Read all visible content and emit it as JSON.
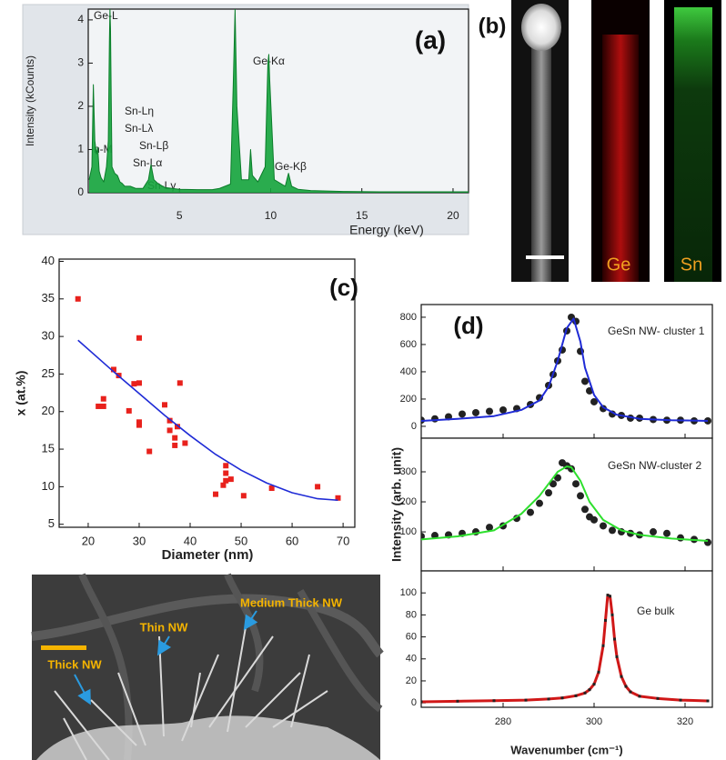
{
  "chart_data": [
    {
      "type": "area",
      "panel_label": "(a)",
      "x_label": "Energy (keV)",
      "y_label": "Intensity (kCounts)",
      "xlim": [
        0,
        20.85
      ],
      "xticks": [
        5,
        10,
        15,
        20
      ],
      "ylim": [
        0,
        4.25
      ],
      "yticks": [
        0,
        1,
        2,
        3,
        4
      ],
      "annotations": [
        "Ge-L",
        "Sn-Lη",
        "Sn-Lλ",
        "Sn-Lβ",
        "Sn-Lα",
        "Sn-Lγ",
        "n-M",
        "Ge-Kα",
        "Ge-Kβ"
      ],
      "x": [
        0.05,
        0.2,
        0.28,
        0.36,
        0.45,
        0.52,
        0.6,
        0.7,
        0.85,
        1.0,
        1.1,
        1.16,
        1.19,
        1.22,
        1.3,
        1.45,
        1.6,
        1.74,
        1.85,
        2.0,
        2.3,
        2.6,
        3.0,
        3.3,
        3.44,
        3.6,
        3.8,
        4.2,
        5.0,
        6.0,
        6.8,
        7.2,
        7.8,
        7.95,
        8.05,
        8.15,
        8.4,
        8.8,
        8.9,
        9.0,
        9.3,
        9.7,
        9.85,
        9.9,
        9.95,
        10.2,
        10.8,
        10.98,
        11.15,
        11.5,
        12.2,
        14,
        16,
        18,
        20.85
      ],
      "series": [
        {
          "color": "#14a43c",
          "values": [
            0.3,
            0.6,
            2.5,
            1.2,
            0.9,
            1.05,
            0.5,
            0.35,
            0.25,
            0.6,
            1.2,
            3.5,
            4.25,
            3.8,
            0.6,
            0.45,
            0.4,
            0.25,
            0.22,
            0.15,
            0.15,
            0.1,
            0.1,
            0.3,
            0.65,
            0.3,
            0.22,
            0.12,
            0.08,
            0.07,
            0.07,
            0.1,
            0.2,
            2.5,
            4.25,
            2.0,
            0.3,
            0.3,
            1.0,
            0.4,
            0.25,
            0.6,
            3.0,
            3.2,
            2.6,
            0.3,
            0.15,
            0.45,
            0.15,
            0.08,
            0.05,
            0.03,
            0.02,
            0.02,
            0.02
          ]
        }
      ]
    },
    {
      "type": "scatter",
      "panel_label": "(c)",
      "x_label": "Diameter (nm)",
      "y_label": "x (at.%)",
      "xlim": [
        14.3,
        72.3
      ],
      "xticks": [
        20,
        30,
        40,
        50,
        60,
        70
      ],
      "ylim": [
        4.6,
        40.3
      ],
      "yticks": [
        5,
        10,
        15,
        20,
        25,
        30,
        35,
        40
      ],
      "series": [
        {
          "type": "scatter",
          "marker": "square",
          "color": "#e8211c",
          "x": [
            18,
            22,
            23,
            23,
            25,
            26,
            28,
            29,
            30,
            30,
            30,
            30,
            32,
            35,
            36,
            36,
            37,
            37,
            37.5,
            38,
            39,
            45,
            46.5,
            47,
            47,
            47,
            48,
            50.5,
            56,
            65,
            69
          ],
          "values": [
            35,
            20.7,
            21.7,
            20.7,
            25.6,
            24.8,
            20.1,
            23.7,
            23.8,
            29.8,
            18.6,
            18.2,
            14.7,
            20.9,
            18.8,
            17.5,
            15.5,
            16.5,
            18,
            23.8,
            15.8,
            9,
            10.2,
            10.8,
            11.8,
            12.8,
            11,
            8.8,
            9.8,
            10,
            8.5
          ]
        },
        {
          "type": "line",
          "color": "#1f2bd6",
          "x": [
            18,
            25,
            30,
            35,
            40,
            45,
            50,
            55,
            60,
            65,
            69
          ],
          "values": [
            29.5,
            25.3,
            22.4,
            19.5,
            16.8,
            14.3,
            12.2,
            10.5,
            9.2,
            8.4,
            8.2
          ]
        }
      ]
    },
    {
      "type": "line",
      "panel_label": "(d)",
      "note": "GeSn NW- cluster 1",
      "xlim": [
        262,
        326
      ],
      "xticks": [
        280,
        300,
        320
      ],
      "ylim": [
        -87,
        893
      ],
      "yticks": [
        0,
        200,
        400,
        600,
        800
      ],
      "series": [
        {
          "type": "scatter",
          "marker": "circle",
          "color": "#222222",
          "x": [
            262,
            265,
            268,
            271,
            274,
            277,
            280,
            283,
            286,
            288,
            290,
            291,
            292,
            293,
            294,
            295,
            296,
            297,
            298,
            299,
            300,
            302,
            304,
            306,
            308,
            310,
            313,
            316,
            319,
            322,
            325
          ],
          "values": [
            45,
            55,
            70,
            90,
            100,
            110,
            120,
            130,
            160,
            210,
            300,
            380,
            480,
            560,
            700,
            800,
            770,
            550,
            330,
            260,
            180,
            130,
            90,
            80,
            60,
            60,
            50,
            45,
            45,
            40,
            40
          ]
        },
        {
          "type": "line",
          "color": "#1f2bd6",
          "x": [
            262,
            270,
            278,
            284,
            288,
            290,
            292,
            294,
            295.5,
            297,
            298,
            300,
            302,
            305,
            310,
            317,
            325
          ],
          "values": [
            40,
            55,
            75,
            120,
            190,
            290,
            480,
            720,
            790,
            620,
            430,
            230,
            140,
            85,
            55,
            45,
            40
          ]
        }
      ]
    },
    {
      "type": "line",
      "note": "GeSn NW-cluster 2",
      "y_label": "Intensity (arb. unit)",
      "xlim": [
        262,
        326
      ],
      "xticks": [
        280,
        300,
        320
      ],
      "ylim": [
        -30,
        412
      ],
      "yticks": [
        100,
        200,
        300
      ],
      "series": [
        {
          "type": "scatter",
          "marker": "circle",
          "color": "#222222",
          "x": [
            262,
            265,
            268,
            271,
            274,
            277,
            280,
            283,
            286,
            288,
            290,
            291,
            292,
            293,
            294,
            295,
            296,
            297,
            298,
            299,
            300,
            302,
            304,
            306,
            308,
            310,
            313,
            316,
            319,
            322,
            325
          ],
          "values": [
            85,
            88,
            90,
            95,
            100,
            115,
            120,
            145,
            165,
            195,
            230,
            260,
            280,
            330,
            320,
            310,
            260,
            220,
            175,
            150,
            140,
            120,
            105,
            100,
            95,
            90,
            100,
            95,
            80,
            75,
            65
          ]
        },
        {
          "type": "line",
          "color": "#2ee02e",
          "x": [
            262,
            270,
            278,
            284,
            288,
            290,
            292,
            294,
            295,
            297,
            299,
            302,
            306,
            310,
            317,
            325
          ],
          "values": [
            75,
            85,
            105,
            160,
            220,
            260,
            300,
            318,
            315,
            270,
            200,
            140,
            105,
            90,
            78,
            70
          ]
        }
      ]
    },
    {
      "type": "line",
      "note": "Ge bulk",
      "x_label": "Wavenumber (cm⁻¹)",
      "xlim": [
        262,
        326
      ],
      "xticks": [
        280,
        300,
        320
      ],
      "ylim": [
        -4,
        120
      ],
      "yticks": [
        0,
        20,
        40,
        60,
        80,
        100
      ],
      "series": [
        {
          "type": "line",
          "color": "#d01818",
          "marker": "square",
          "marker_color": "#222222",
          "x": [
            262,
            270,
            278,
            285,
            290,
            293,
            296,
            298,
            299,
            300,
            301,
            302,
            302.5,
            303,
            303.5,
            304,
            304.5,
            305,
            306,
            307,
            308,
            310,
            314,
            319,
            325
          ],
          "values": [
            1,
            1.5,
            2,
            2.5,
            3.5,
            4.5,
            6.5,
            9,
            12,
            17,
            28,
            52,
            75,
            98,
            97,
            80,
            58,
            42,
            24,
            15,
            10,
            6,
            4,
            2.5,
            1.8
          ]
        }
      ]
    }
  ],
  "images": {
    "b": {
      "panel_label": "(b)",
      "channels": [
        "Ge",
        "Sn"
      ]
    },
    "sem": {
      "labels": [
        "Thin NW",
        "Medium Thick NW",
        "Thick NW"
      ]
    }
  }
}
